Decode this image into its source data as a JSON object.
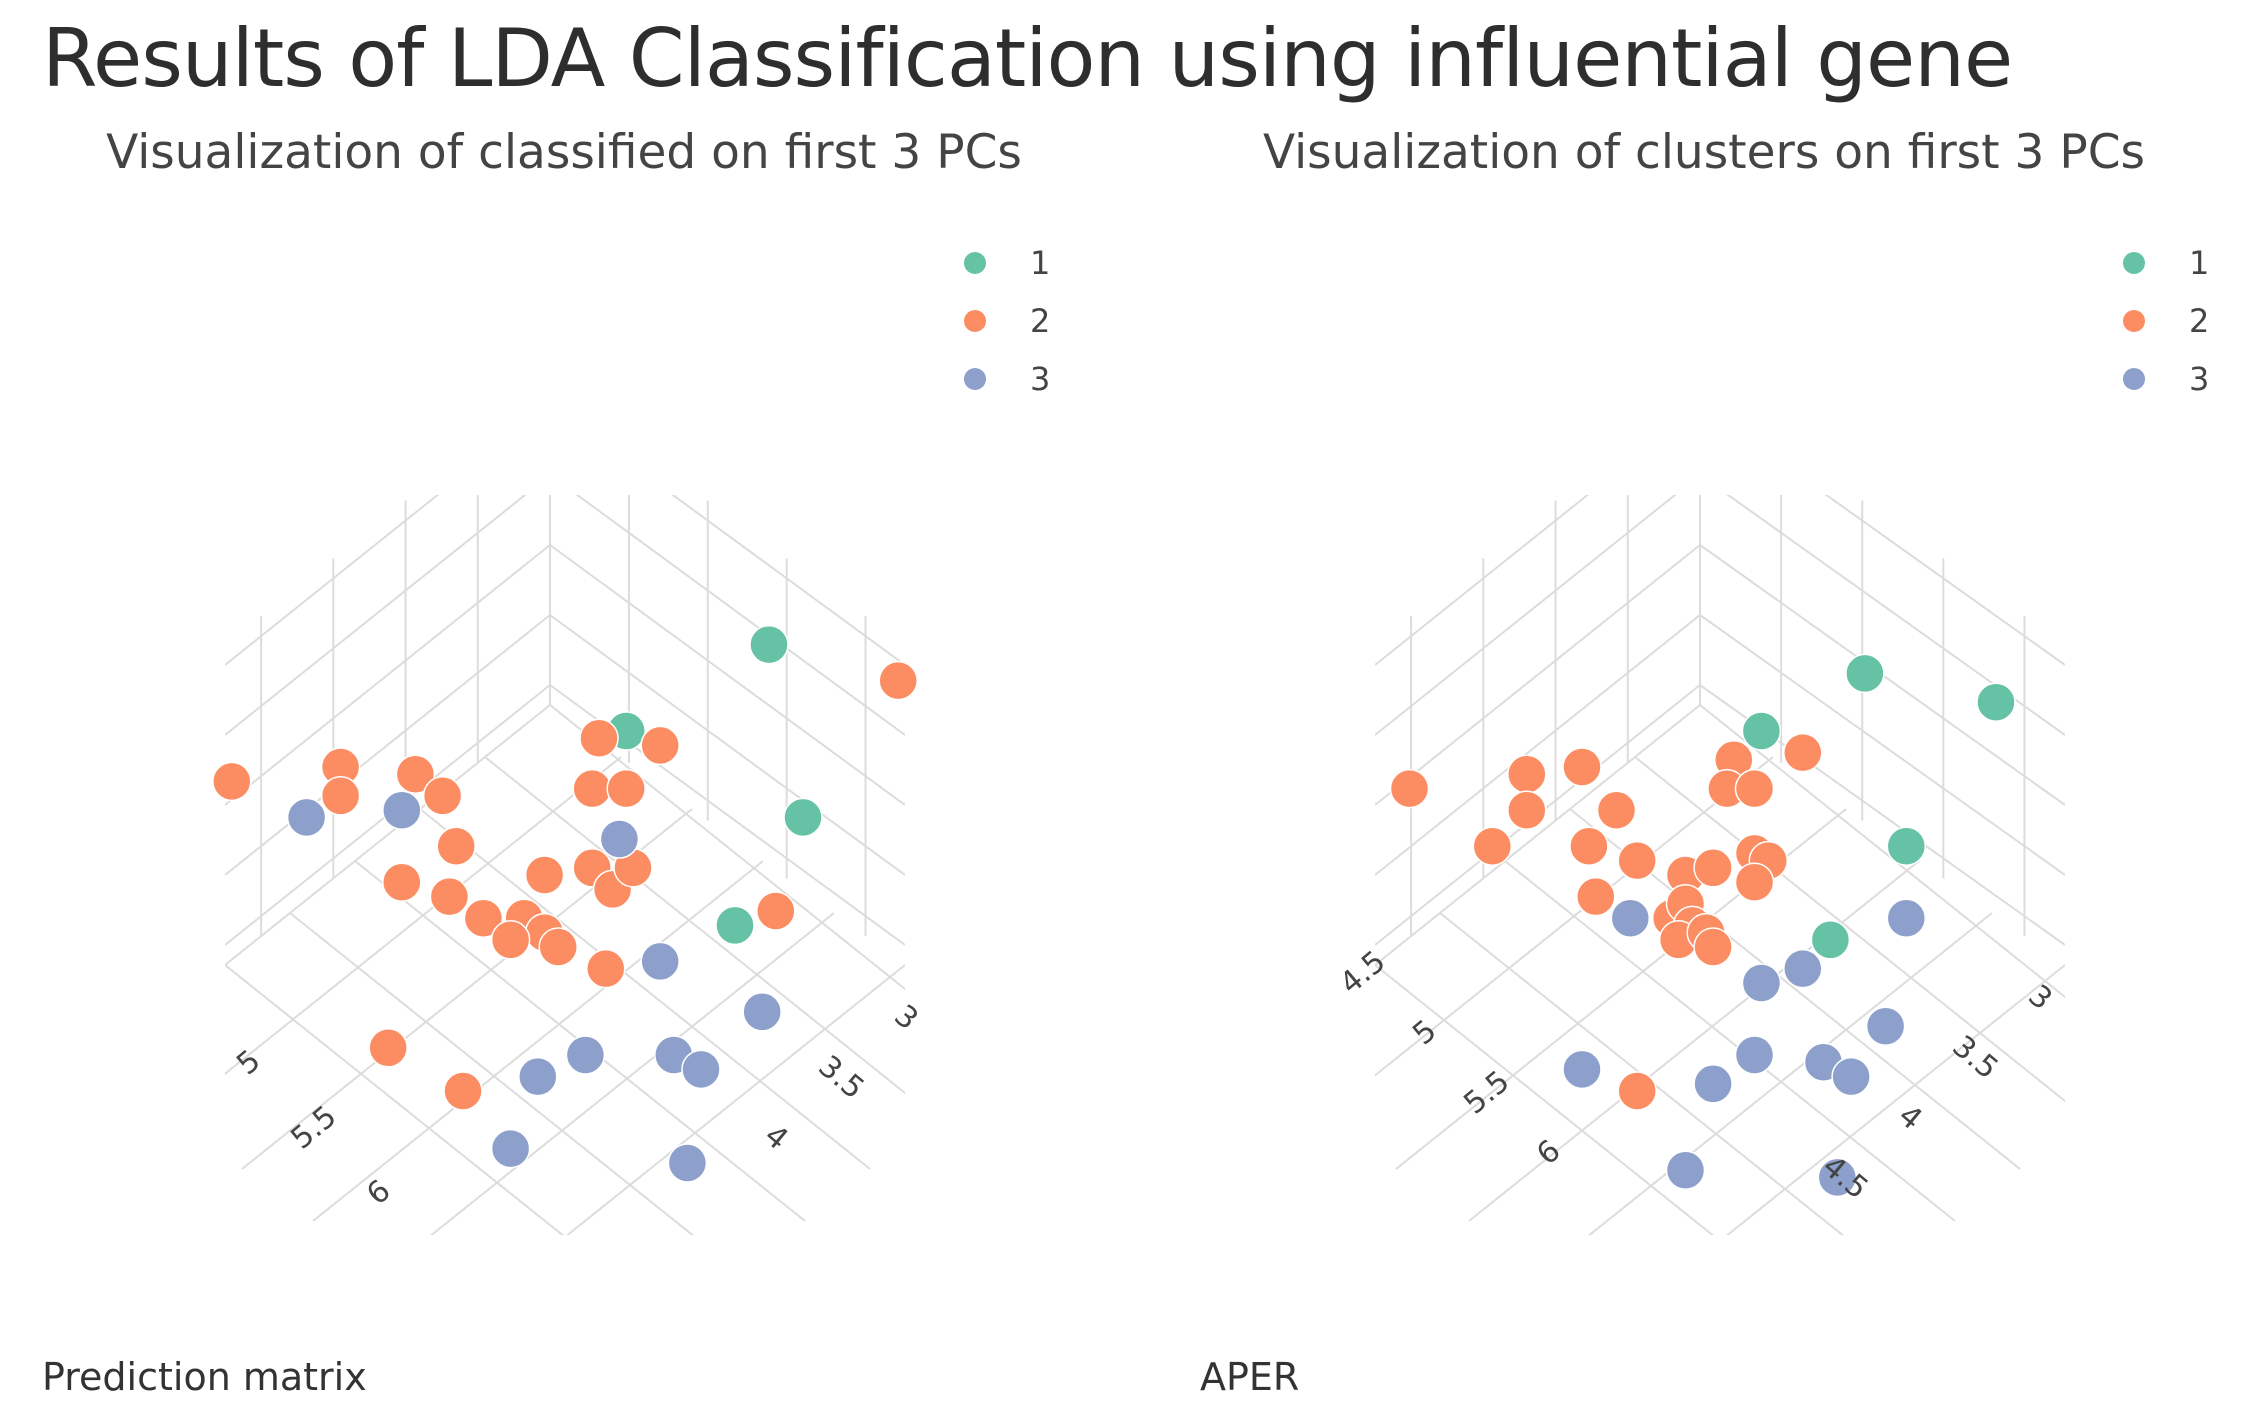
{
  "page": {
    "title": "Results of LDA Classification using influential gene",
    "bottom_left_label": "Prediction matrix",
    "bottom_right_label": "APER"
  },
  "colors": {
    "class_1": "#66c2a5",
    "class_2": "#fc8d62",
    "class_3": "#8da0cb",
    "grid": "#dcdcdc"
  },
  "chart_data": [
    {
      "type": "scatter",
      "title": "Visualization of classified on first 3 PCs",
      "legend": {
        "placement": "top-right",
        "entries": [
          "1",
          "2",
          "3"
        ]
      },
      "axes": {
        "front_left_ticks": [
          "5",
          "5.5",
          "6"
        ],
        "front_right_ticks": [
          "3",
          "3.5",
          "4"
        ]
      },
      "grid": true,
      "points": [
        {
          "c": "1",
          "p": [
            0.8,
            0.18
          ]
        },
        {
          "c": "1",
          "p": [
            0.59,
            0.3
          ]
        },
        {
          "c": "1",
          "p": [
            0.85,
            0.42
          ]
        },
        {
          "c": "1",
          "p": [
            0.75,
            0.57
          ]
        },
        {
          "c": "2",
          "p": [
            0.99,
            0.23
          ]
        },
        {
          "c": "2",
          "p": [
            0.55,
            0.31
          ]
        },
        {
          "c": "2",
          "p": [
            0.64,
            0.32
          ]
        },
        {
          "c": "2",
          "p": [
            0.01,
            0.37
          ]
        },
        {
          "c": "2",
          "p": [
            0.17,
            0.35
          ]
        },
        {
          "c": "2",
          "p": [
            0.17,
            0.39
          ]
        },
        {
          "c": "2",
          "p": [
            0.28,
            0.36
          ]
        },
        {
          "c": "2",
          "p": [
            0.32,
            0.39
          ]
        },
        {
          "c": "2",
          "p": [
            0.54,
            0.38
          ]
        },
        {
          "c": "2",
          "p": [
            0.59,
            0.38
          ]
        },
        {
          "c": "2",
          "p": [
            0.34,
            0.46
          ]
        },
        {
          "c": "2",
          "p": [
            0.26,
            0.51
          ]
        },
        {
          "c": "2",
          "p": [
            0.33,
            0.53
          ]
        },
        {
          "c": "2",
          "p": [
            0.47,
            0.5
          ]
        },
        {
          "c": "2",
          "p": [
            0.54,
            0.49
          ]
        },
        {
          "c": "2",
          "p": [
            0.57,
            0.52
          ]
        },
        {
          "c": "2",
          "p": [
            0.6,
            0.49
          ]
        },
        {
          "c": "2",
          "p": [
            0.38,
            0.56
          ]
        },
        {
          "c": "2",
          "p": [
            0.44,
            0.56
          ]
        },
        {
          "c": "2",
          "p": [
            0.47,
            0.58
          ]
        },
        {
          "c": "2",
          "p": [
            0.42,
            0.59
          ]
        },
        {
          "c": "2",
          "p": [
            0.49,
            0.6
          ]
        },
        {
          "c": "2",
          "p": [
            0.56,
            0.63
          ]
        },
        {
          "c": "2",
          "p": [
            0.81,
            0.55
          ]
        },
        {
          "c": "2",
          "p": [
            0.24,
            0.74
          ]
        },
        {
          "c": "2",
          "p": [
            0.35,
            0.8
          ]
        },
        {
          "c": "3",
          "p": [
            0.12,
            0.42
          ]
        },
        {
          "c": "3",
          "p": [
            0.26,
            0.41
          ]
        },
        {
          "c": "3",
          "p": [
            0.58,
            0.45
          ]
        },
        {
          "c": "3",
          "p": [
            0.64,
            0.62
          ]
        },
        {
          "c": "3",
          "p": [
            0.79,
            0.69
          ]
        },
        {
          "c": "3",
          "p": [
            0.53,
            0.75
          ]
        },
        {
          "c": "3",
          "p": [
            0.46,
            0.78
          ]
        },
        {
          "c": "3",
          "p": [
            0.66,
            0.75
          ]
        },
        {
          "c": "3",
          "p": [
            0.7,
            0.77
          ]
        },
        {
          "c": "3",
          "p": [
            0.42,
            0.88
          ]
        },
        {
          "c": "3",
          "p": [
            0.68,
            0.9
          ]
        }
      ]
    },
    {
      "type": "scatter",
      "title": "Visualization of clusters on first 3 PCs",
      "legend": {
        "placement": "top-right",
        "entries": [
          "1",
          "2",
          "3"
        ]
      },
      "axes": {
        "front_left_ticks": [
          "4.5",
          "5",
          "5.5",
          "6"
        ],
        "front_right_ticks": [
          "3",
          "3.5",
          "4",
          "4.5"
        ]
      },
      "grid": true,
      "points": [
        {
          "c": "1",
          "p": [
            0.71,
            0.22
          ]
        },
        {
          "c": "1",
          "p": [
            0.9,
            0.26
          ]
        },
        {
          "c": "1",
          "p": [
            0.56,
            0.3
          ]
        },
        {
          "c": "1",
          "p": [
            0.77,
            0.46
          ]
        },
        {
          "c": "1",
          "p": [
            0.66,
            0.59
          ]
        },
        {
          "c": "2",
          "p": [
            0.05,
            0.38
          ]
        },
        {
          "c": "2",
          "p": [
            0.22,
            0.36
          ]
        },
        {
          "c": "2",
          "p": [
            0.22,
            0.41
          ]
        },
        {
          "c": "2",
          "p": [
            0.3,
            0.35
          ]
        },
        {
          "c": "2",
          "p": [
            0.35,
            0.41
          ]
        },
        {
          "c": "2",
          "p": [
            0.17,
            0.46
          ]
        },
        {
          "c": "2",
          "p": [
            0.31,
            0.46
          ]
        },
        {
          "c": "2",
          "p": [
            0.38,
            0.48
          ]
        },
        {
          "c": "2",
          "p": [
            0.32,
            0.53
          ]
        },
        {
          "c": "2",
          "p": [
            0.52,
            0.34
          ]
        },
        {
          "c": "2",
          "p": [
            0.62,
            0.33
          ]
        },
        {
          "c": "2",
          "p": [
            0.51,
            0.38
          ]
        },
        {
          "c": "2",
          "p": [
            0.55,
            0.38
          ]
        },
        {
          "c": "2",
          "p": [
            0.45,
            0.5
          ]
        },
        {
          "c": "2",
          "p": [
            0.49,
            0.49
          ]
        },
        {
          "c": "2",
          "p": [
            0.55,
            0.47
          ]
        },
        {
          "c": "2",
          "p": [
            0.57,
            0.48
          ]
        },
        {
          "c": "2",
          "p": [
            0.55,
            0.51
          ]
        },
        {
          "c": "2",
          "p": [
            0.43,
            0.56
          ]
        },
        {
          "c": "2",
          "p": [
            0.45,
            0.54
          ]
        },
        {
          "c": "2",
          "p": [
            0.46,
            0.57
          ]
        },
        {
          "c": "2",
          "p": [
            0.44,
            0.59
          ]
        },
        {
          "c": "2",
          "p": [
            0.48,
            0.58
          ]
        },
        {
          "c": "2",
          "p": [
            0.49,
            0.6
          ]
        },
        {
          "c": "2",
          "p": [
            0.38,
            0.8
          ]
        },
        {
          "c": "3",
          "p": [
            0.37,
            0.56
          ]
        },
        {
          "c": "3",
          "p": [
            0.77,
            0.56
          ]
        },
        {
          "c": "3",
          "p": [
            0.56,
            0.65
          ]
        },
        {
          "c": "3",
          "p": [
            0.62,
            0.63
          ]
        },
        {
          "c": "3",
          "p": [
            0.74,
            0.71
          ]
        },
        {
          "c": "3",
          "p": [
            0.3,
            0.77
          ]
        },
        {
          "c": "3",
          "p": [
            0.55,
            0.75
          ]
        },
        {
          "c": "3",
          "p": [
            0.49,
            0.79
          ]
        },
        {
          "c": "3",
          "p": [
            0.65,
            0.76
          ]
        },
        {
          "c": "3",
          "p": [
            0.69,
            0.78
          ]
        },
        {
          "c": "3",
          "p": [
            0.45,
            0.91
          ]
        },
        {
          "c": "3",
          "p": [
            0.67,
            0.92
          ]
        }
      ]
    }
  ]
}
